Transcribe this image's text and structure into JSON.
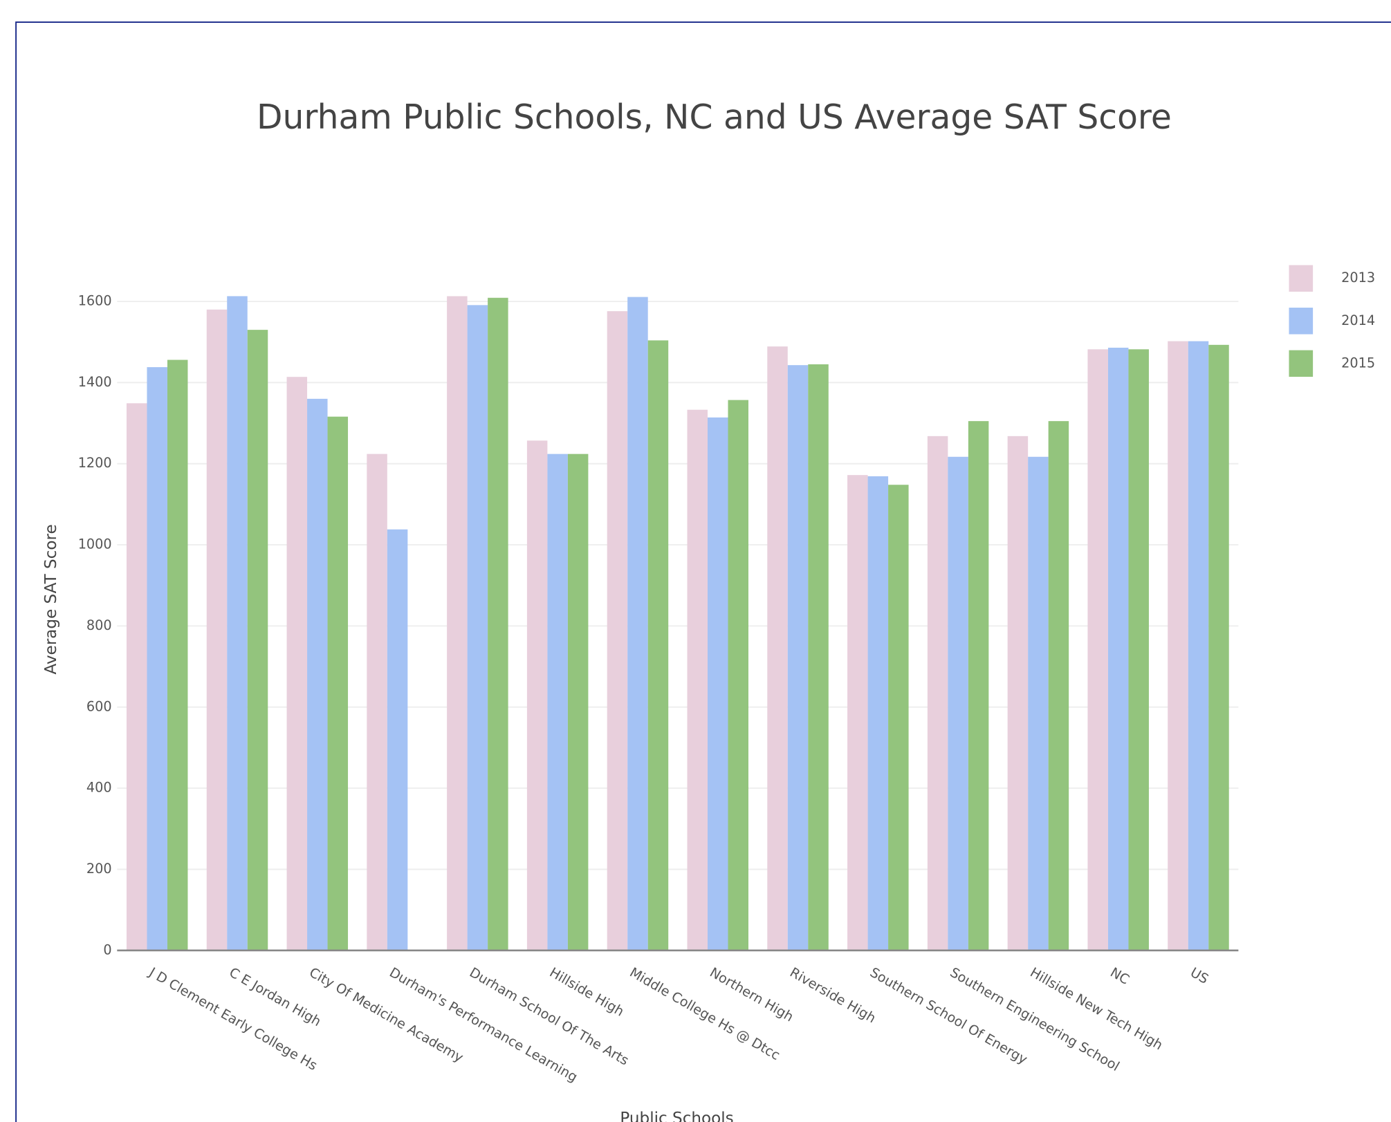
{
  "chart_data": {
    "type": "bar",
    "title": "Durham Public Schools, NC and US Average SAT Score",
    "x_label": "Public Schools",
    "y_label": "Average SAT Score",
    "categories": [
      "J D Clement Early College Hs",
      "C E Jordan High",
      "City Of Medicine Academy",
      "Durham's Performance Learning",
      "Durham School Of The Arts",
      "Hillside High",
      "Middle College Hs @ Dtcc",
      "Northern High",
      "Riverside High",
      "Southern School Of Energy",
      "Southern Engineering School",
      "Hillside New Tech High",
      "NC",
      "US"
    ],
    "series": [
      {
        "name": "2013",
        "color": "#e8cfdc",
        "values": [
          1349,
          1580,
          1414,
          1224,
          1613,
          1257,
          1576,
          1333,
          1489,
          1172,
          1268,
          1268,
          1482,
          1502
        ]
      },
      {
        "name": "2014",
        "color": "#a4c2f4",
        "values": [
          1438,
          1613,
          1360,
          1038,
          1591,
          1224,
          1611,
          1314,
          1443,
          1169,
          1217,
          1217,
          1486,
          1502
        ]
      },
      {
        "name": "2015",
        "color": "#93c47d",
        "values": [
          1456,
          1530,
          1316,
          null,
          1609,
          1224,
          1504,
          1357,
          1445,
          1148,
          1305,
          1305,
          1482,
          1493
        ]
      }
    ],
    "ylim": [
      0,
      1600
    ],
    "yticks": [
      0,
      200,
      400,
      600,
      800,
      1000,
      1200,
      1400,
      1600
    ],
    "grid": true,
    "legend": "right"
  }
}
